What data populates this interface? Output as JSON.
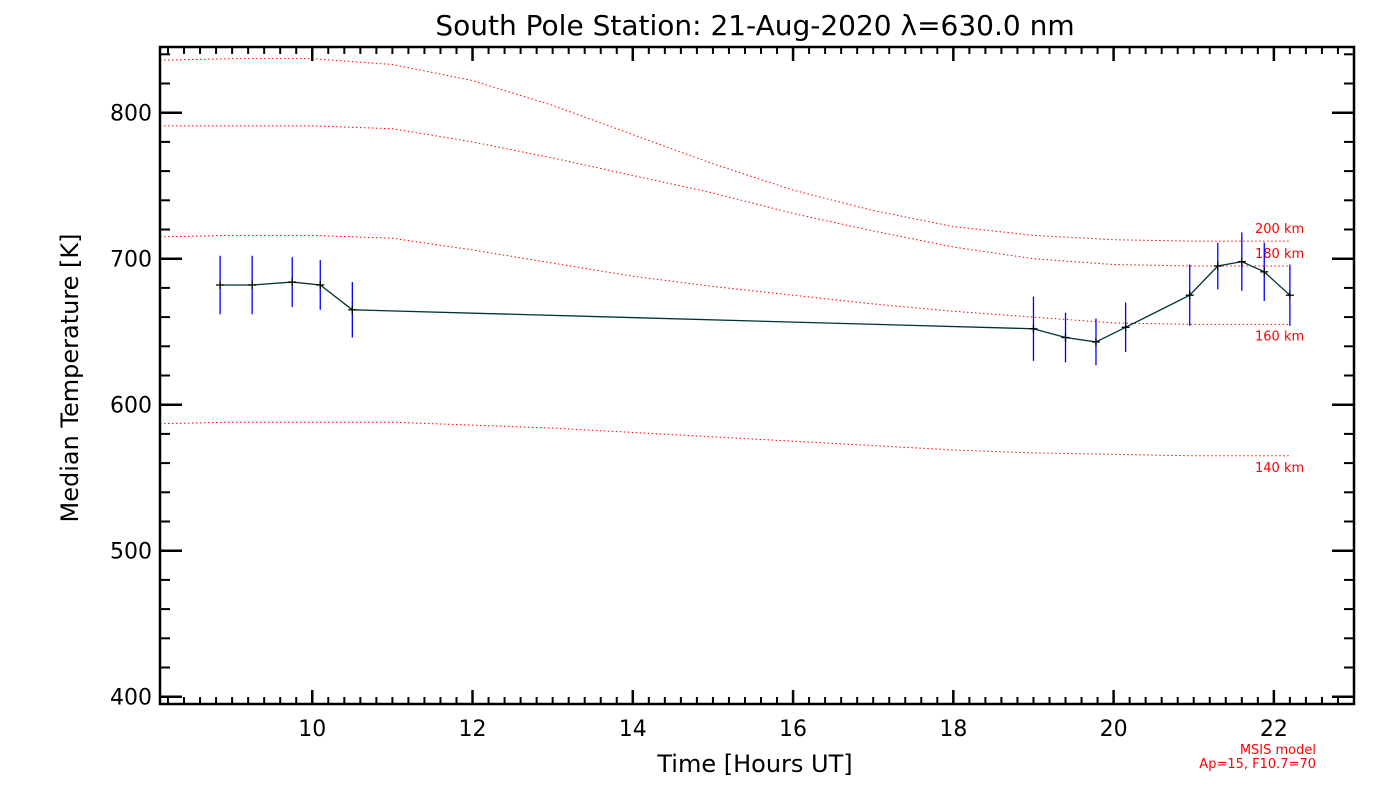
{
  "chart_data": {
    "type": "line",
    "title": "South Pole Station: 21-Aug-2020 λ=630.0 nm",
    "xlabel": "Time [Hours UT]",
    "ylabel": "Median Temperature [K]",
    "xlim": [
      8.1,
      23.0
    ],
    "ylim": [
      395,
      845
    ],
    "xticks": [
      10,
      12,
      14,
      16,
      18,
      20,
      22
    ],
    "yticks": [
      400,
      500,
      600,
      700,
      800
    ],
    "xtick_labels": [
      "10",
      "12",
      "14",
      "16",
      "18",
      "20",
      "22"
    ],
    "ytick_labels": [
      "400",
      "500",
      "600",
      "700",
      "800"
    ],
    "grid": false,
    "series": [
      {
        "style": "solid line with plus markers and error bars",
        "color": "#003333",
        "errorbar_color": "#0000ff",
        "x": [
          8.85,
          9.25,
          9.75,
          10.1,
          10.5,
          19.0,
          19.4,
          19.78,
          20.15,
          20.95,
          21.3,
          21.6,
          21.88,
          22.2
        ],
        "y": [
          682,
          682,
          684,
          682,
          665,
          652,
          646,
          643,
          653,
          675,
          695,
          698,
          691,
          675
        ],
        "err": [
          20,
          20,
          17,
          17,
          19,
          22,
          17,
          16,
          17,
          21,
          16,
          20,
          20,
          21
        ]
      }
    ],
    "model_curves": {
      "color": "#ff0000",
      "style": "dotted",
      "x": [
        8.1,
        9.0,
        10.0,
        11.0,
        12.0,
        13.0,
        14.0,
        15.0,
        16.0,
        17.0,
        18.0,
        19.0,
        20.0,
        21.0,
        22.0,
        22.2
      ],
      "curves": [
        {
          "label": "200 km",
          "y": [
            836,
            837,
            837,
            833,
            822,
            805,
            785,
            765,
            747,
            733,
            722,
            716,
            713,
            712,
            712,
            712
          ]
        },
        {
          "label": "180 km",
          "y": [
            791,
            791,
            791,
            789,
            780,
            769,
            757,
            745,
            731,
            719,
            708,
            700,
            696,
            695,
            695,
            695
          ]
        },
        {
          "label": "160 km",
          "y": [
            715,
            716,
            716,
            714,
            706,
            697,
            688,
            681,
            675,
            669,
            664,
            660,
            656,
            655,
            655,
            655
          ]
        },
        {
          "label": "140 km",
          "y": [
            587,
            588,
            588,
            588,
            586,
            584,
            581,
            578,
            575,
            572,
            569,
            567,
            566,
            565,
            565,
            565
          ]
        }
      ]
    },
    "annotations": {
      "model_name": "MSIS model",
      "model_params": "Ap=15, F10.7=70"
    }
  }
}
